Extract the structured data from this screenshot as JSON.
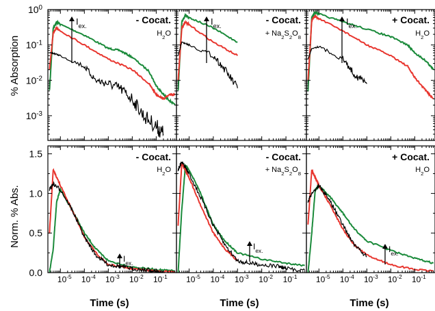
{
  "colors": {
    "black": "#000000",
    "red": "#e8362f",
    "green": "#1a8a3a",
    "cocat_red": "#e8362f"
  },
  "axis_labels": {
    "top_ylabel": "% Absorption",
    "bottom_ylabel": "Norm. % Abs.",
    "xlabel": "Time (s)"
  },
  "top_ytick_labels": [
    {
      "base": "10",
      "exp": "0"
    },
    {
      "base": "10",
      "exp": "-1"
    },
    {
      "base": "10",
      "exp": "-2"
    },
    {
      "base": "10",
      "exp": "-3"
    }
  ],
  "bottom_ytick_labels": [
    "0.0",
    "0.5",
    "1.0",
    "1.5"
  ],
  "xtick_labels": [
    {
      "base": "10",
      "exp": "-5"
    },
    {
      "base": "10",
      "exp": "-4"
    },
    {
      "base": "10",
      "exp": "-3"
    },
    {
      "base": "10",
      "exp": "-2"
    },
    {
      "base": "10",
      "exp": "-1"
    }
  ],
  "panels": [
    {
      "cocat": "- Cocat.",
      "cocat_color": "#000000",
      "solvent": "H",
      "solvent_sub": "2",
      "solvent_tail": "O",
      "iex": "I",
      "iex_sub": "ex."
    },
    {
      "cocat": "- Cocat.",
      "cocat_color": "#000000",
      "solvent": "+ Na",
      "solvent_sub": "2",
      "solvent_tail": "S",
      "solvent_sub2": "2",
      "solvent_tail2": "O",
      "solvent_sub3": "8",
      "iex": "I",
      "iex_sub": "ex."
    },
    {
      "cocat": "+ Cocat.",
      "cocat_color": "#e8362f",
      "solvent": "H",
      "solvent_sub": "2",
      "solvent_tail": "O",
      "iex": "I",
      "iex_sub": "ex."
    }
  ],
  "chart_data": [
    {
      "type": "line",
      "title": "",
      "xlabel": "Time (s)",
      "ylabel": "% Absorption",
      "xscale": "log",
      "yscale": "log",
      "xlim": [
        3e-06,
        0.7
      ],
      "ylim": [
        0.0002,
        1
      ],
      "legend": "none",
      "grid": false,
      "panels": [
        "- Cocat. H2O",
        "- Cocat. + Na2S2O8",
        "+ Cocat. H2O"
      ],
      "series": [
        {
          "panel": 0,
          "color": "green",
          "x": [
            3.5e-06,
            5e-06,
            7e-06,
            1e-05,
            0.0001,
            0.001,
            0.003,
            0.01,
            0.05,
            0.1,
            0.2,
            0.3,
            0.6
          ],
          "values": [
            0.005,
            0.3,
            0.45,
            0.38,
            0.19,
            0.08,
            0.07,
            0.045,
            0.018,
            0.007,
            0.004,
            0.003,
            0.002
          ]
        },
        {
          "panel": 0,
          "color": "red",
          "x": [
            3.5e-06,
            5e-06,
            7e-06,
            1e-05,
            0.0001,
            0.001,
            0.01,
            0.05,
            0.1,
            0.2,
            0.4,
            0.6
          ],
          "values": [
            0.02,
            0.22,
            0.3,
            0.25,
            0.1,
            0.04,
            0.02,
            0.008,
            0.004,
            0.003,
            0.004,
            0.004
          ]
        },
        {
          "panel": 0,
          "color": "black",
          "x": [
            3.5e-06,
            5e-06,
            1e-05,
            0.0001,
            0.0003,
            0.001,
            0.003,
            0.01,
            0.03,
            0.1,
            0.2
          ],
          "values": [
            0.06,
            0.058,
            0.05,
            0.025,
            0.01,
            0.008,
            0.006,
            0.003,
            0.001,
            0.0005,
            0.0003
          ]
        },
        {
          "panel": 1,
          "color": "green",
          "x": [
            3.5e-06,
            5e-06,
            7e-06,
            1e-05,
            0.0001,
            0.001
          ],
          "values": [
            0.005,
            0.45,
            0.7,
            0.6,
            0.3,
            0.12
          ]
        },
        {
          "panel": 1,
          "color": "red",
          "x": [
            3.5e-06,
            5e-06,
            7e-06,
            1e-05,
            0.0001,
            0.001
          ],
          "values": [
            0.01,
            0.3,
            0.45,
            0.37,
            0.12,
            0.05
          ]
        },
        {
          "panel": 1,
          "color": "black",
          "x": [
            3.5e-06,
            5e-06,
            1e-05,
            0.0001,
            0.0003,
            0.001
          ],
          "values": [
            0.05,
            0.12,
            0.1,
            0.05,
            0.02,
            0.006
          ]
        },
        {
          "panel": 2,
          "color": "green",
          "x": [
            3.5e-06,
            5e-06,
            7e-06,
            1e-05,
            0.0001,
            0.001,
            0.01,
            0.05,
            0.1,
            0.3,
            0.6
          ],
          "values": [
            0.005,
            0.6,
            0.85,
            0.75,
            0.45,
            0.28,
            0.17,
            0.1,
            0.06,
            0.035,
            0.02
          ]
        },
        {
          "panel": 2,
          "color": "red",
          "x": [
            3.5e-06,
            5e-06,
            7e-06,
            1e-05,
            0.0001,
            0.001,
            0.01,
            0.05,
            0.1,
            0.3,
            0.6
          ],
          "values": [
            0.01,
            0.5,
            0.65,
            0.55,
            0.25,
            0.1,
            0.05,
            0.025,
            0.012,
            0.005,
            0.003
          ]
        },
        {
          "panel": 2,
          "color": "black",
          "x": [
            3.5e-06,
            5e-06,
            1e-05,
            0.0001,
            0.0003,
            0.001
          ],
          "values": [
            0.04,
            0.08,
            0.09,
            0.04,
            0.015,
            0.008
          ]
        }
      ]
    },
    {
      "type": "line",
      "title": "",
      "xlabel": "Time (s)",
      "ylabel": "Norm. % Abs.",
      "xscale": "log",
      "xlim": [
        3e-06,
        0.7
      ],
      "ylim": [
        0,
        1.6
      ],
      "legend": "none",
      "grid": false,
      "panels": [
        "- Cocat. H2O",
        "- Cocat. + Na2S2O8",
        "+ Cocat. H2O"
      ],
      "series": [
        {
          "panel": 0,
          "color": "green",
          "x": [
            3.5e-06,
            5e-06,
            7e-06,
            1e-05,
            3e-05,
            0.0001,
            0.0003,
            0.001,
            0.01,
            0.1,
            0.6
          ],
          "values": [
            0.0,
            0.3,
            0.9,
            1.05,
            0.8,
            0.5,
            0.3,
            0.15,
            0.07,
            0.04,
            0.02
          ]
        },
        {
          "panel": 0,
          "color": "red",
          "x": [
            3.5e-06,
            5e-06,
            7e-06,
            1e-05,
            3e-05,
            0.0001,
            0.0003,
            0.001,
            0.01,
            0.1,
            0.6
          ],
          "values": [
            0.5,
            1.3,
            1.2,
            1.1,
            0.8,
            0.45,
            0.25,
            0.1,
            0.05,
            0.02,
            0.01
          ]
        },
        {
          "panel": 0,
          "color": "black",
          "x": [
            3.5e-06,
            5e-06,
            1e-05,
            3e-05,
            0.0001,
            0.0003,
            0.001,
            0.003,
            0.01,
            0.05,
            0.1,
            0.2
          ],
          "values": [
            1.05,
            1.12,
            1.05,
            0.8,
            0.45,
            0.22,
            0.1,
            0.08,
            0.05,
            0.03,
            0.01,
            0.0
          ]
        },
        {
          "panel": 1,
          "color": "green",
          "x": [
            3.5e-06,
            5e-06,
            7e-06,
            1e-05,
            3e-05,
            0.0001,
            0.0003,
            0.001,
            0.01,
            0.1,
            0.6
          ],
          "values": [
            0.0,
            0.8,
            1.35,
            1.3,
            1.0,
            0.6,
            0.4,
            0.25,
            0.17,
            0.12,
            0.09
          ]
        },
        {
          "panel": 1,
          "color": "red",
          "x": [
            3.5e-06,
            5e-06,
            7e-06,
            1e-05,
            3e-05,
            0.0001,
            0.0003,
            0.001
          ],
          "values": [
            0.6,
            1.38,
            1.3,
            1.2,
            0.85,
            0.5,
            0.3,
            0.15
          ]
        },
        {
          "panel": 1,
          "color": "black",
          "x": [
            3.5e-06,
            5e-06,
            1e-05,
            3e-05,
            0.0001,
            0.0003,
            0.001,
            0.003,
            0.01,
            0.05,
            0.1,
            0.6
          ],
          "values": [
            1.3,
            1.4,
            1.25,
            0.95,
            0.6,
            0.35,
            0.15,
            0.12,
            0.1,
            0.08,
            0.05,
            0.03
          ]
        },
        {
          "panel": 2,
          "color": "green",
          "x": [
            3.5e-06,
            5e-06,
            7e-06,
            1e-05,
            3e-05,
            0.0001,
            0.0003,
            0.001,
            0.01,
            0.1,
            0.6
          ],
          "values": [
            0.0,
            0.5,
            1.05,
            1.1,
            0.95,
            0.75,
            0.55,
            0.4,
            0.28,
            0.18,
            0.12
          ]
        },
        {
          "panel": 2,
          "color": "red",
          "x": [
            3.5e-06,
            5e-06,
            7e-06,
            1e-05,
            3e-05,
            0.0001,
            0.0003,
            0.001,
            0.01,
            0.1,
            0.6
          ],
          "values": [
            0.6,
            1.3,
            1.2,
            1.1,
            0.85,
            0.55,
            0.35,
            0.22,
            0.1,
            0.04,
            0.02
          ]
        },
        {
          "panel": 2,
          "color": "black",
          "x": [
            3.5e-06,
            5e-06,
            1e-05,
            3e-05,
            0.0001,
            0.0003,
            0.001
          ],
          "values": [
            0.9,
            1.0,
            1.1,
            0.9,
            0.6,
            0.35,
            0.2
          ]
        }
      ]
    }
  ]
}
